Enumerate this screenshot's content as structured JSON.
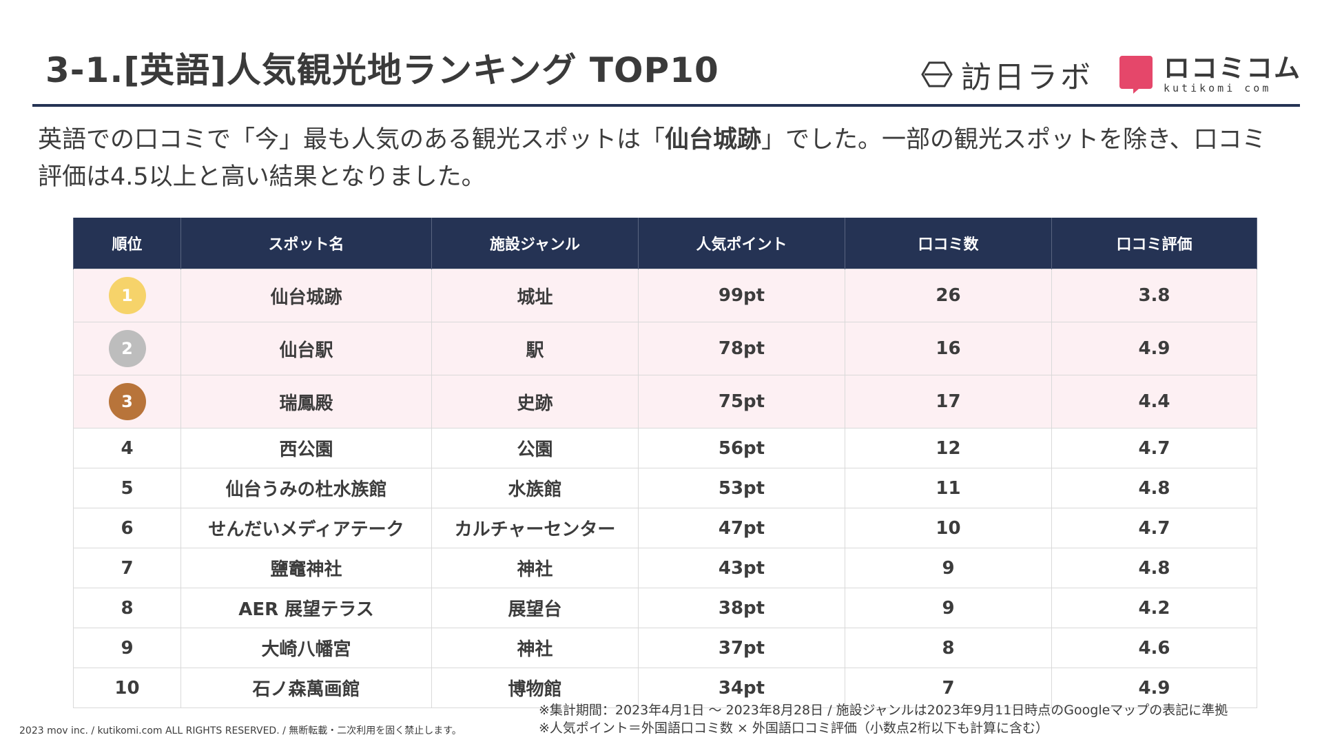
{
  "title": "3-1.[英語]人気観光地ランキング TOP10",
  "logos": {
    "houjin_text": "訪日ラボ",
    "kuchikomi_text": "ロコミコム",
    "kuchikomi_sub": "kutikomi com"
  },
  "lead": {
    "part1": "英語での口コミで「今」最も人気のある観光スポットは「",
    "highlight": "仙台城跡",
    "part2": "」でした。一部の観光スポットを除き、口コミ評価は4.5以上と高い結果となりました。"
  },
  "table": {
    "headers": [
      "順位",
      "スポット名",
      "施設ジャンル",
      "人気ポイント",
      "口コミ数",
      "口コミ評価"
    ],
    "rows": [
      {
        "rank": "1",
        "name": "仙台城跡",
        "genre": "城址",
        "points": "99pt",
        "reviews": "26",
        "rating": "3.8",
        "medal_color": "#f6d36a"
      },
      {
        "rank": "2",
        "name": "仙台駅",
        "genre": "駅",
        "points": "78pt",
        "reviews": "16",
        "rating": "4.9",
        "medal_color": "#bdbdbd"
      },
      {
        "rank": "3",
        "name": "瑞鳳殿",
        "genre": "史跡",
        "points": "75pt",
        "reviews": "17",
        "rating": "4.4",
        "medal_color": "#b8743a"
      },
      {
        "rank": "4",
        "name": "西公園",
        "genre": "公園",
        "points": "56pt",
        "reviews": "12",
        "rating": "4.7"
      },
      {
        "rank": "5",
        "name": "仙台うみの杜水族館",
        "genre": "水族館",
        "points": "53pt",
        "reviews": "11",
        "rating": "4.8"
      },
      {
        "rank": "6",
        "name": "せんだいメディアテーク",
        "genre": "カルチャーセンター",
        "points": "47pt",
        "reviews": "10",
        "rating": "4.7"
      },
      {
        "rank": "7",
        "name": "鹽竈神社",
        "genre": "神社",
        "points": "43pt",
        "reviews": "9",
        "rating": "4.8"
      },
      {
        "rank": "8",
        "name": "AER 展望テラス",
        "genre": "展望台",
        "points": "38pt",
        "reviews": "9",
        "rating": "4.2"
      },
      {
        "rank": "9",
        "name": "大崎八幡宮",
        "genre": "神社",
        "points": "37pt",
        "reviews": "8",
        "rating": "4.6"
      },
      {
        "rank": "10",
        "name": "石ノ森萬画館",
        "genre": "博物館",
        "points": "34pt",
        "reviews": "7",
        "rating": "4.9"
      }
    ]
  },
  "footnotes": {
    "line1": "※集計期間：2023年4月1日 ～ 2023年8月28日 / 施設ジャンルは2023年9月11日時点のGoogleマップの表記に準拠",
    "line2": "※人気ポイント＝外国語口コミ数 × 外国語口コミ評価（小数点2桁以下も計算に含む）"
  },
  "copyright": "2023 mov inc. / kutikomi.com ALL RIGHTS RESERVED. / 無断転載・二次利用を固く禁止します。",
  "colors": {
    "header_bg": "#253354",
    "top3_row_bg": "#fdf0f3",
    "kuchikomi_brand": "#e5476a"
  }
}
